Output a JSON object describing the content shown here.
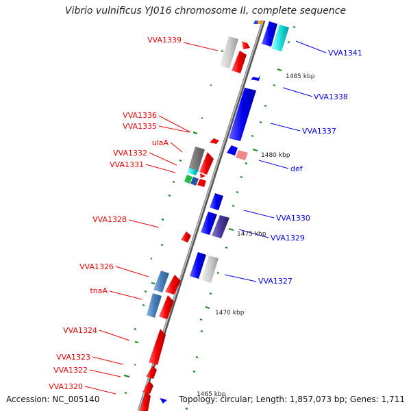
{
  "title": "Vibrio vulnificus YJ016 chromosome II, complete sequence",
  "footer": {
    "accession": "Accession: NC_005140",
    "summary": "Topology: circular; Length: 1,857,073 bp; Genes: 1,711"
  },
  "colors": {
    "backbone": "#8a8a8a",
    "forward_strand": "#0000ee",
    "reverse_strand": "#ee0000",
    "tick": "#118811"
  },
  "scale_labels": [
    "1485 kbp",
    "1480 kbp",
    "1475 kbp",
    "1470 kbp",
    "1465 kbp"
  ],
  "gene_labels_left": [
    "VVA1339",
    "VVA1336",
    "VVA1335",
    "ulaA",
    "VVA1332",
    "VVA1331",
    "VVA1328",
    "VVA1326",
    "tnaA",
    "VVA1324",
    "VVA1323",
    "VVA1322",
    "VVA1320"
  ],
  "gene_labels_right": [
    "VVA1341",
    "VVA1338",
    "VVA1337",
    "def",
    "VVA1330",
    "VVA1329",
    "VVA1327"
  ]
}
